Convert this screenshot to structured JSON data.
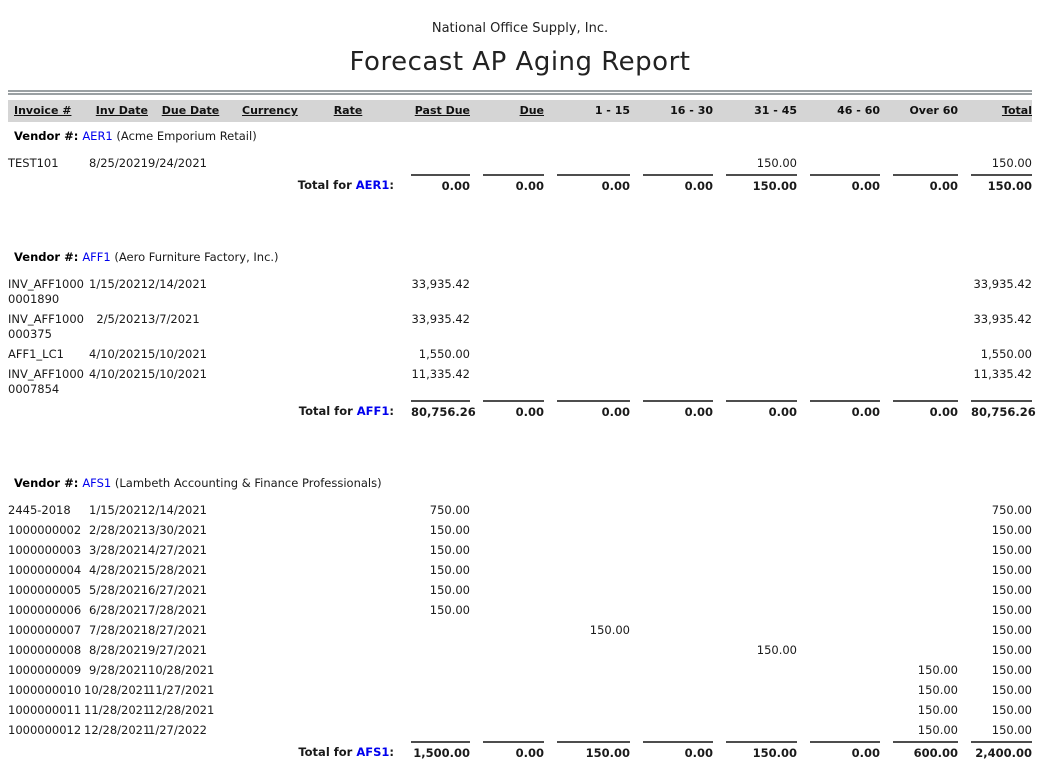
{
  "report": {
    "company": "National Office Supply, Inc.",
    "title": "Forecast AP Aging Report"
  },
  "labels": {
    "vendor_prefix": "Vendor #:",
    "total_prefix": "Total for",
    "colon": ":"
  },
  "colors": {
    "vendor_code_blue": "#0000ee",
    "header_band_gray": "#d5d5d5",
    "rule_gray": "#4d4d4d"
  },
  "table": {
    "columns": [
      {
        "label": "Invoice #",
        "align": "left",
        "underline": true
      },
      {
        "label": "Inv Date",
        "align": "right",
        "underline": true
      },
      {
        "label": "Due Date",
        "align": "left",
        "underline": true
      },
      {
        "label": "Currency",
        "align": "left",
        "underline": true
      },
      {
        "label": "Rate",
        "align": "left",
        "underline": true
      },
      {
        "label": "Past Due",
        "align": "right",
        "underline": true
      },
      {
        "label": "Due",
        "align": "right",
        "underline": true
      },
      {
        "label": "1 - 15",
        "align": "right",
        "underline": false
      },
      {
        "label": "16 - 30",
        "align": "right",
        "underline": false
      },
      {
        "label": "31 - 45",
        "align": "right",
        "underline": false
      },
      {
        "label": "46 - 60",
        "align": "right",
        "underline": false
      },
      {
        "label": "Over 60",
        "align": "right",
        "underline": false
      },
      {
        "label": "Total",
        "align": "right",
        "underline": true
      }
    ],
    "vendors": [
      {
        "code": "AER1",
        "name": "(Acme Emporium Retail)",
        "rows": [
          [
            "TEST101",
            "8/25/2021",
            "9/24/2021",
            "",
            "",
            "",
            "",
            "",
            "",
            "150.00",
            "",
            "",
            "150.00"
          ]
        ],
        "totals": [
          "0.00",
          "0.00",
          "0.00",
          "0.00",
          "150.00",
          "0.00",
          "0.00",
          "150.00"
        ]
      },
      {
        "code": "AFF1",
        "name": "(Aero Furniture Factory, Inc.)",
        "rows": [
          [
            "INV_AFF1000\n0001890",
            "1/15/2021",
            "2/14/2021",
            "",
            "",
            "33,935.42",
            "",
            "",
            "",
            "",
            "",
            "",
            "33,935.42"
          ],
          [
            "INV_AFF1000\n000375",
            "2/5/2021",
            "3/7/2021",
            "",
            "",
            "33,935.42",
            "",
            "",
            "",
            "",
            "",
            "",
            "33,935.42"
          ],
          [
            "AFF1_LC1",
            "4/10/2021",
            "5/10/2021",
            "",
            "",
            "1,550.00",
            "",
            "",
            "",
            "",
            "",
            "",
            "1,550.00"
          ],
          [
            "INV_AFF1000\n0007854",
            "4/10/2021",
            "5/10/2021",
            "",
            "",
            "11,335.42",
            "",
            "",
            "",
            "",
            "",
            "",
            "11,335.42"
          ]
        ],
        "totals": [
          "80,756.26",
          "0.00",
          "0.00",
          "0.00",
          "0.00",
          "0.00",
          "0.00",
          "80,756.26"
        ]
      },
      {
        "code": "AFS1",
        "name": "(Lambeth Accounting & Finance Professionals)",
        "rows": [
          [
            "2445-2018",
            "1/15/2021",
            "2/14/2021",
            "",
            "",
            "750.00",
            "",
            "",
            "",
            "",
            "",
            "",
            "750.00"
          ],
          [
            "1000000002",
            "2/28/2021",
            "3/30/2021",
            "",
            "",
            "150.00",
            "",
            "",
            "",
            "",
            "",
            "",
            "150.00"
          ],
          [
            "1000000003",
            "3/28/2021",
            "4/27/2021",
            "",
            "",
            "150.00",
            "",
            "",
            "",
            "",
            "",
            "",
            "150.00"
          ],
          [
            "1000000004",
            "4/28/2021",
            "5/28/2021",
            "",
            "",
            "150.00",
            "",
            "",
            "",
            "",
            "",
            "",
            "150.00"
          ],
          [
            "1000000005",
            "5/28/2021",
            "6/27/2021",
            "",
            "",
            "150.00",
            "",
            "",
            "",
            "",
            "",
            "",
            "150.00"
          ],
          [
            "1000000006",
            "6/28/2021",
            "7/28/2021",
            "",
            "",
            "150.00",
            "",
            "",
            "",
            "",
            "",
            "",
            "150.00"
          ],
          [
            "1000000007",
            "7/28/2021",
            "8/27/2021",
            "",
            "",
            "",
            "",
            "150.00",
            "",
            "",
            "",
            "",
            "150.00"
          ],
          [
            "1000000008",
            "8/28/2021",
            "9/27/2021",
            "",
            "",
            "",
            "",
            "",
            "",
            "150.00",
            "",
            "",
            "150.00"
          ],
          [
            "1000000009",
            "9/28/2021",
            "10/28/2021",
            "",
            "",
            "",
            "",
            "",
            "",
            "",
            "",
            "150.00",
            "150.00"
          ],
          [
            "1000000010",
            "10/28/2021",
            "11/27/2021",
            "",
            "",
            "",
            "",
            "",
            "",
            "",
            "",
            "150.00",
            "150.00"
          ],
          [
            "1000000011",
            "11/28/2021",
            "12/28/2021",
            "",
            "",
            "",
            "",
            "",
            "",
            "",
            "",
            "150.00",
            "150.00"
          ],
          [
            "1000000012",
            "12/28/2021",
            "1/27/2022",
            "",
            "",
            "",
            "",
            "",
            "",
            "",
            "",
            "150.00",
            "150.00"
          ]
        ],
        "totals": [
          "1,500.00",
          "0.00",
          "150.00",
          "0.00",
          "150.00",
          "0.00",
          "600.00",
          "2,400.00"
        ]
      }
    ]
  }
}
